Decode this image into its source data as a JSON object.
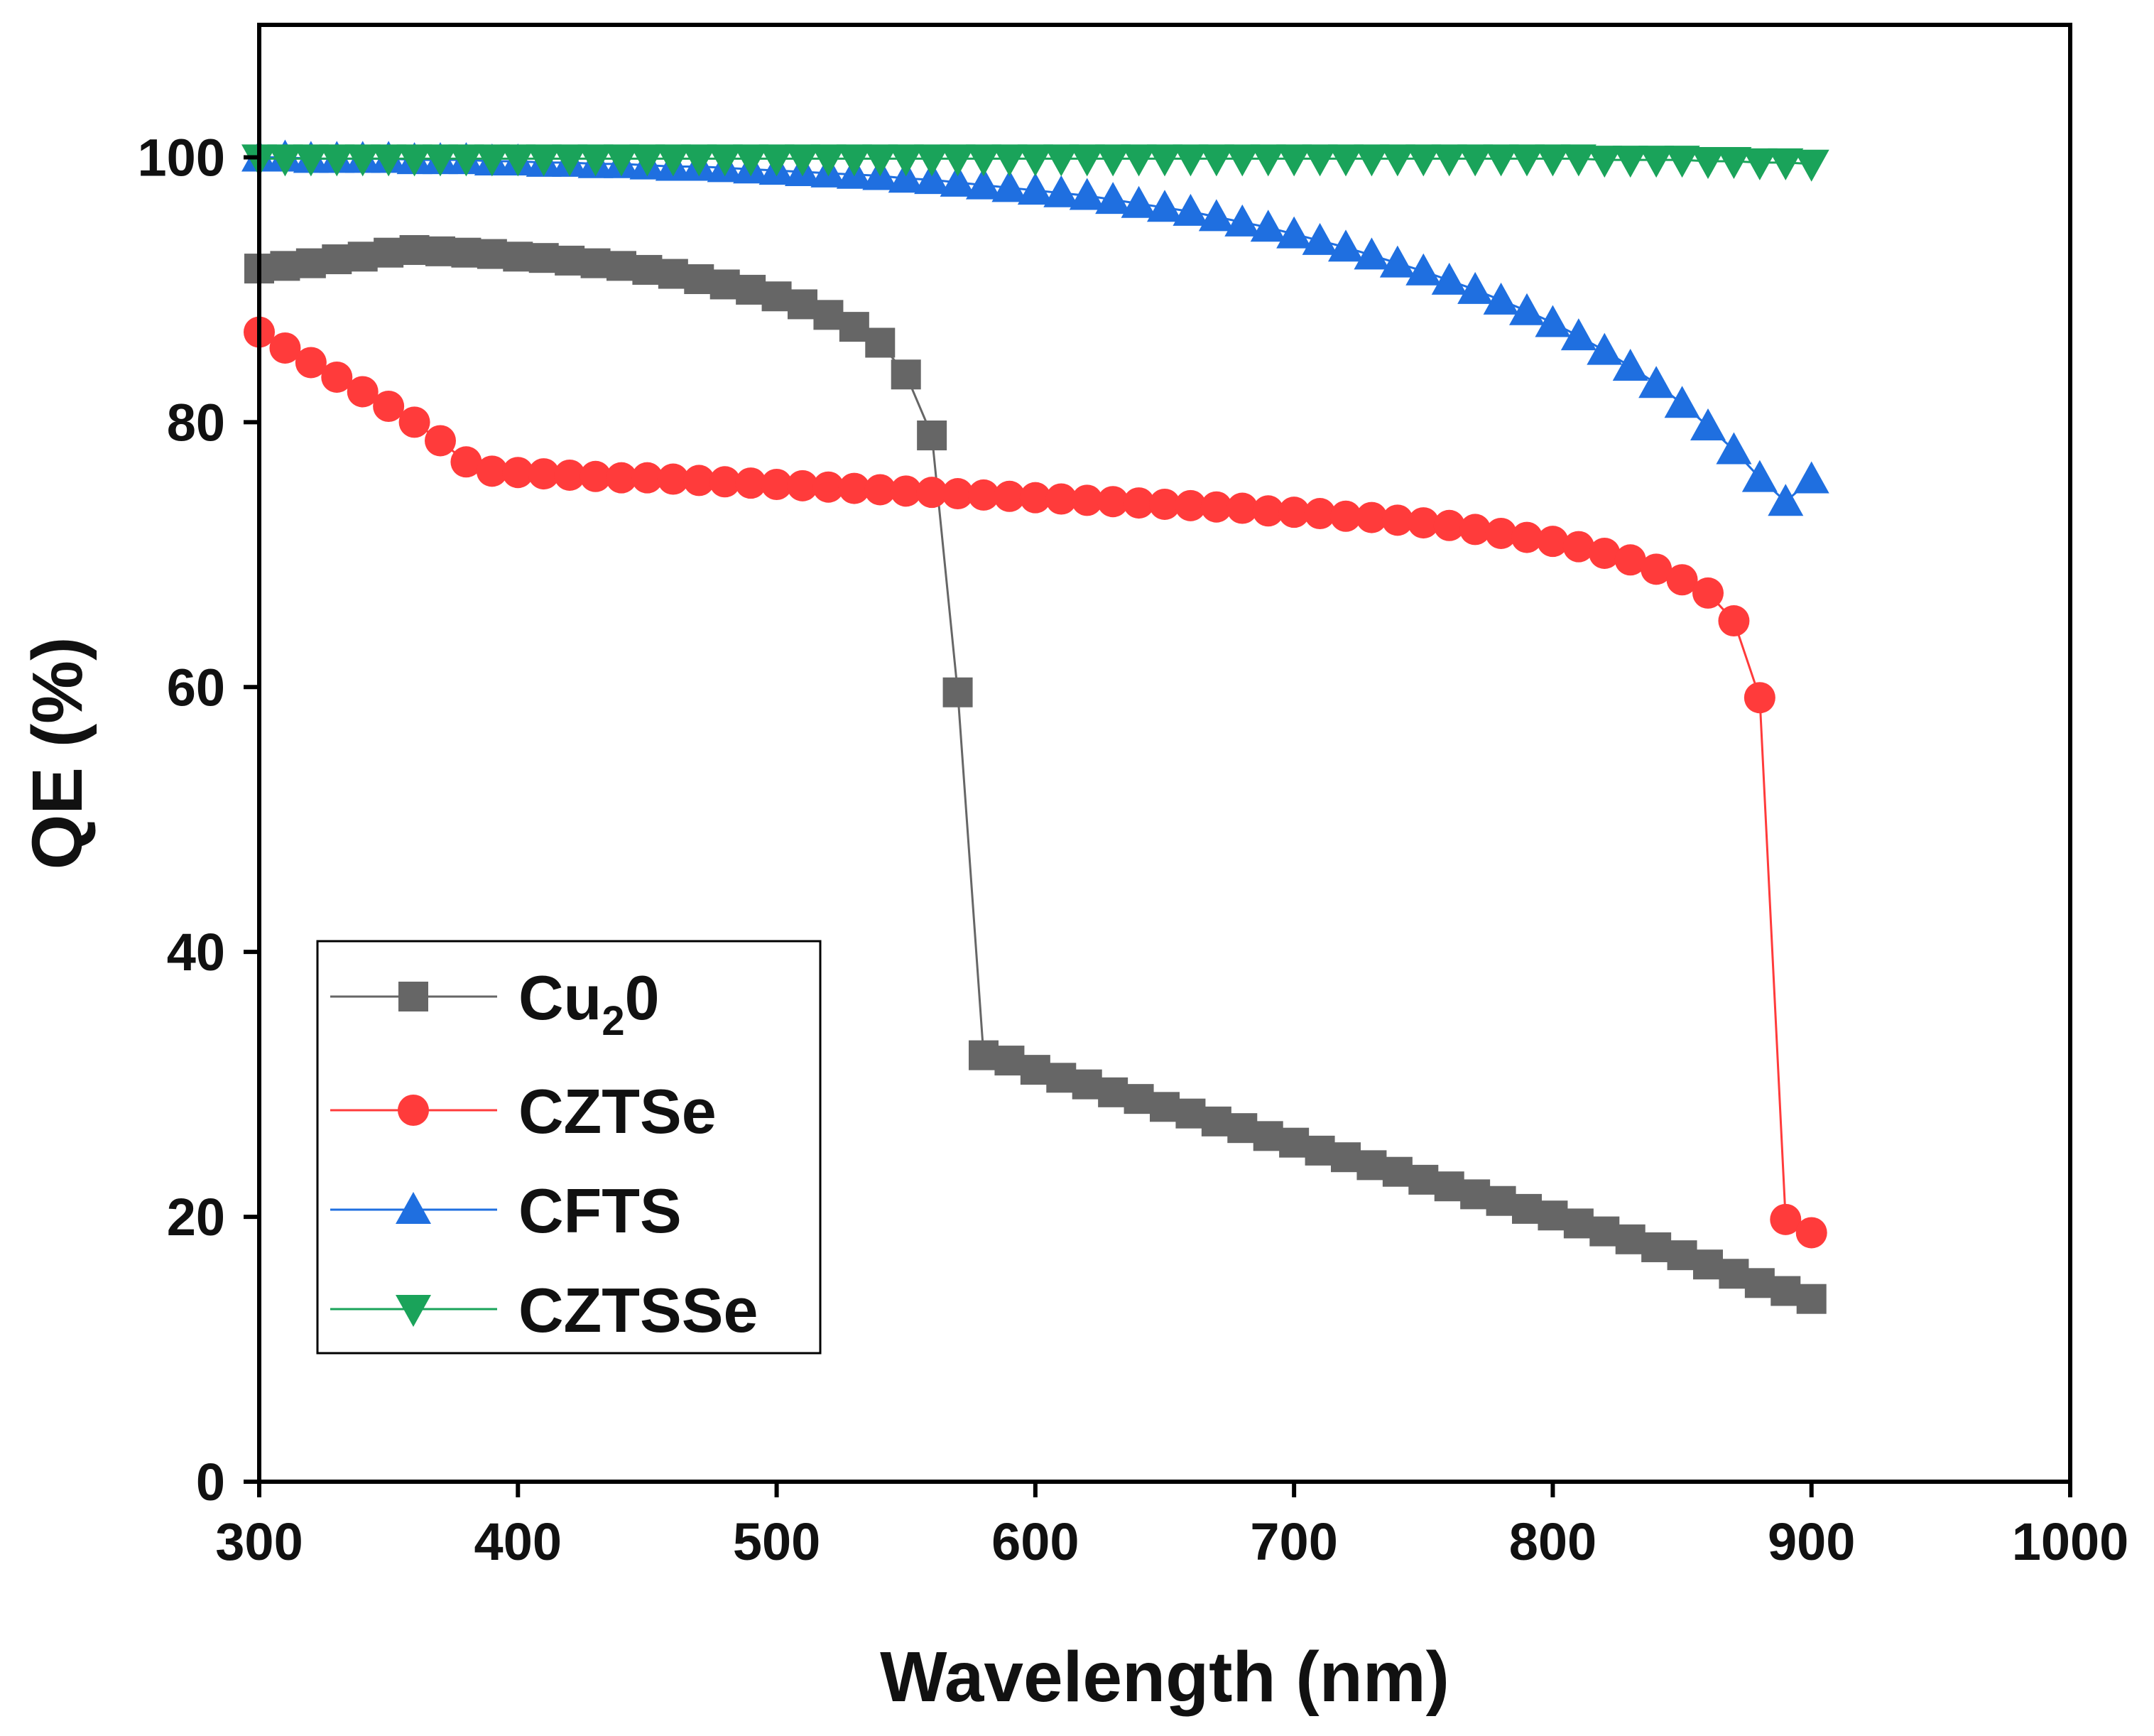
{
  "chart_data": {
    "type": "line",
    "title": "",
    "xlabel": "Wavelength (nm)",
    "ylabel": "QE (%)",
    "xlim": [
      300,
      1000
    ],
    "ylim": [
      0,
      110
    ],
    "xticks": [
      300,
      400,
      500,
      600,
      700,
      800,
      900,
      1000
    ],
    "yticks": [
      0,
      20,
      40,
      60,
      80,
      100
    ],
    "legend_position": "lower-left",
    "x": [
      300,
      310,
      320,
      330,
      340,
      350,
      360,
      370,
      380,
      390,
      400,
      410,
      420,
      430,
      440,
      450,
      460,
      470,
      480,
      490,
      500,
      510,
      520,
      530,
      540,
      550,
      560,
      570,
      580,
      590,
      600,
      610,
      620,
      630,
      640,
      650,
      660,
      670,
      680,
      690,
      700,
      710,
      720,
      730,
      740,
      750,
      760,
      770,
      780,
      790,
      800,
      810,
      820,
      830,
      840,
      850,
      860,
      870,
      880,
      890,
      900
    ],
    "series": [
      {
        "name": "Cu2O",
        "label_main": "Cu",
        "label_sub": "2",
        "label_tail": "0",
        "color": "#666666",
        "marker": "square",
        "values": [
          91.6,
          91.8,
          92.0,
          92.3,
          92.5,
          92.8,
          93.0,
          92.9,
          92.8,
          92.7,
          92.5,
          92.4,
          92.2,
          92.0,
          91.8,
          91.5,
          91.2,
          90.8,
          90.4,
          90.0,
          89.5,
          88.9,
          88.1,
          87.2,
          86.0,
          83.6,
          79.0,
          59.6,
          32.2,
          31.8,
          31.1,
          30.5,
          30.0,
          29.4,
          28.9,
          28.3,
          27.8,
          27.2,
          26.7,
          26.1,
          25.6,
          25.0,
          24.5,
          23.9,
          23.4,
          22.8,
          22.3,
          21.7,
          21.2,
          20.6,
          20.1,
          19.5,
          18.9,
          18.3,
          17.7,
          17.1,
          16.4,
          15.7,
          15.0,
          14.4,
          13.8
        ]
      },
      {
        "name": "CZTSe",
        "color": "#ff3b3b",
        "marker": "circle",
        "values": [
          86.8,
          85.6,
          84.5,
          83.4,
          82.3,
          81.2,
          80.0,
          78.6,
          77.0,
          76.3,
          76.2,
          76.1,
          76.0,
          75.9,
          75.8,
          75.8,
          75.7,
          75.6,
          75.5,
          75.4,
          75.3,
          75.2,
          75.1,
          75.0,
          74.9,
          74.8,
          74.7,
          74.6,
          74.5,
          74.4,
          74.3,
          74.2,
          74.1,
          74.0,
          73.9,
          73.8,
          73.7,
          73.6,
          73.5,
          73.3,
          73.2,
          73.1,
          72.9,
          72.8,
          72.6,
          72.4,
          72.2,
          71.9,
          71.6,
          71.3,
          71.0,
          70.6,
          70.1,
          69.6,
          68.9,
          68.1,
          67.1,
          65.0,
          59.2,
          19.8,
          18.8
        ]
      },
      {
        "name": "CFTS",
        "color": "#1f6fe0",
        "marker": "triangle-up",
        "values": [
          100.0,
          100.0,
          99.9,
          99.9,
          99.9,
          99.9,
          99.8,
          99.8,
          99.8,
          99.7,
          99.7,
          99.6,
          99.6,
          99.5,
          99.5,
          99.4,
          99.3,
          99.3,
          99.2,
          99.1,
          99.0,
          98.9,
          98.8,
          98.7,
          98.6,
          98.4,
          98.3,
          98.1,
          97.9,
          97.7,
          97.5,
          97.3,
          97.1,
          96.8,
          96.5,
          96.2,
          95.9,
          95.5,
          95.1,
          94.7,
          94.2,
          93.7,
          93.2,
          92.6,
          92.0,
          91.4,
          90.7,
          90.0,
          89.2,
          88.4,
          87.5,
          86.5,
          85.4,
          84.2,
          82.9,
          81.4,
          79.7,
          77.9,
          75.8,
          74.0,
          75.7
        ]
      },
      {
        "name": "CZTSSe",
        "color": "#1aa35a",
        "marker": "triangle-down",
        "values": [
          99.9,
          99.9,
          99.9,
          99.9,
          99.9,
          99.9,
          99.9,
          99.9,
          99.9,
          99.9,
          99.9,
          99.9,
          99.9,
          99.9,
          99.9,
          99.9,
          99.9,
          99.9,
          99.9,
          99.9,
          99.9,
          99.9,
          99.9,
          99.9,
          99.9,
          99.9,
          99.9,
          99.9,
          99.9,
          99.9,
          99.9,
          99.9,
          99.9,
          99.9,
          99.9,
          99.9,
          99.9,
          99.9,
          99.9,
          99.9,
          99.9,
          99.9,
          99.9,
          99.9,
          99.9,
          99.9,
          99.9,
          99.9,
          99.9,
          99.9,
          99.9,
          99.9,
          99.8,
          99.8,
          99.8,
          99.8,
          99.7,
          99.7,
          99.6,
          99.6,
          99.5
        ]
      }
    ]
  }
}
